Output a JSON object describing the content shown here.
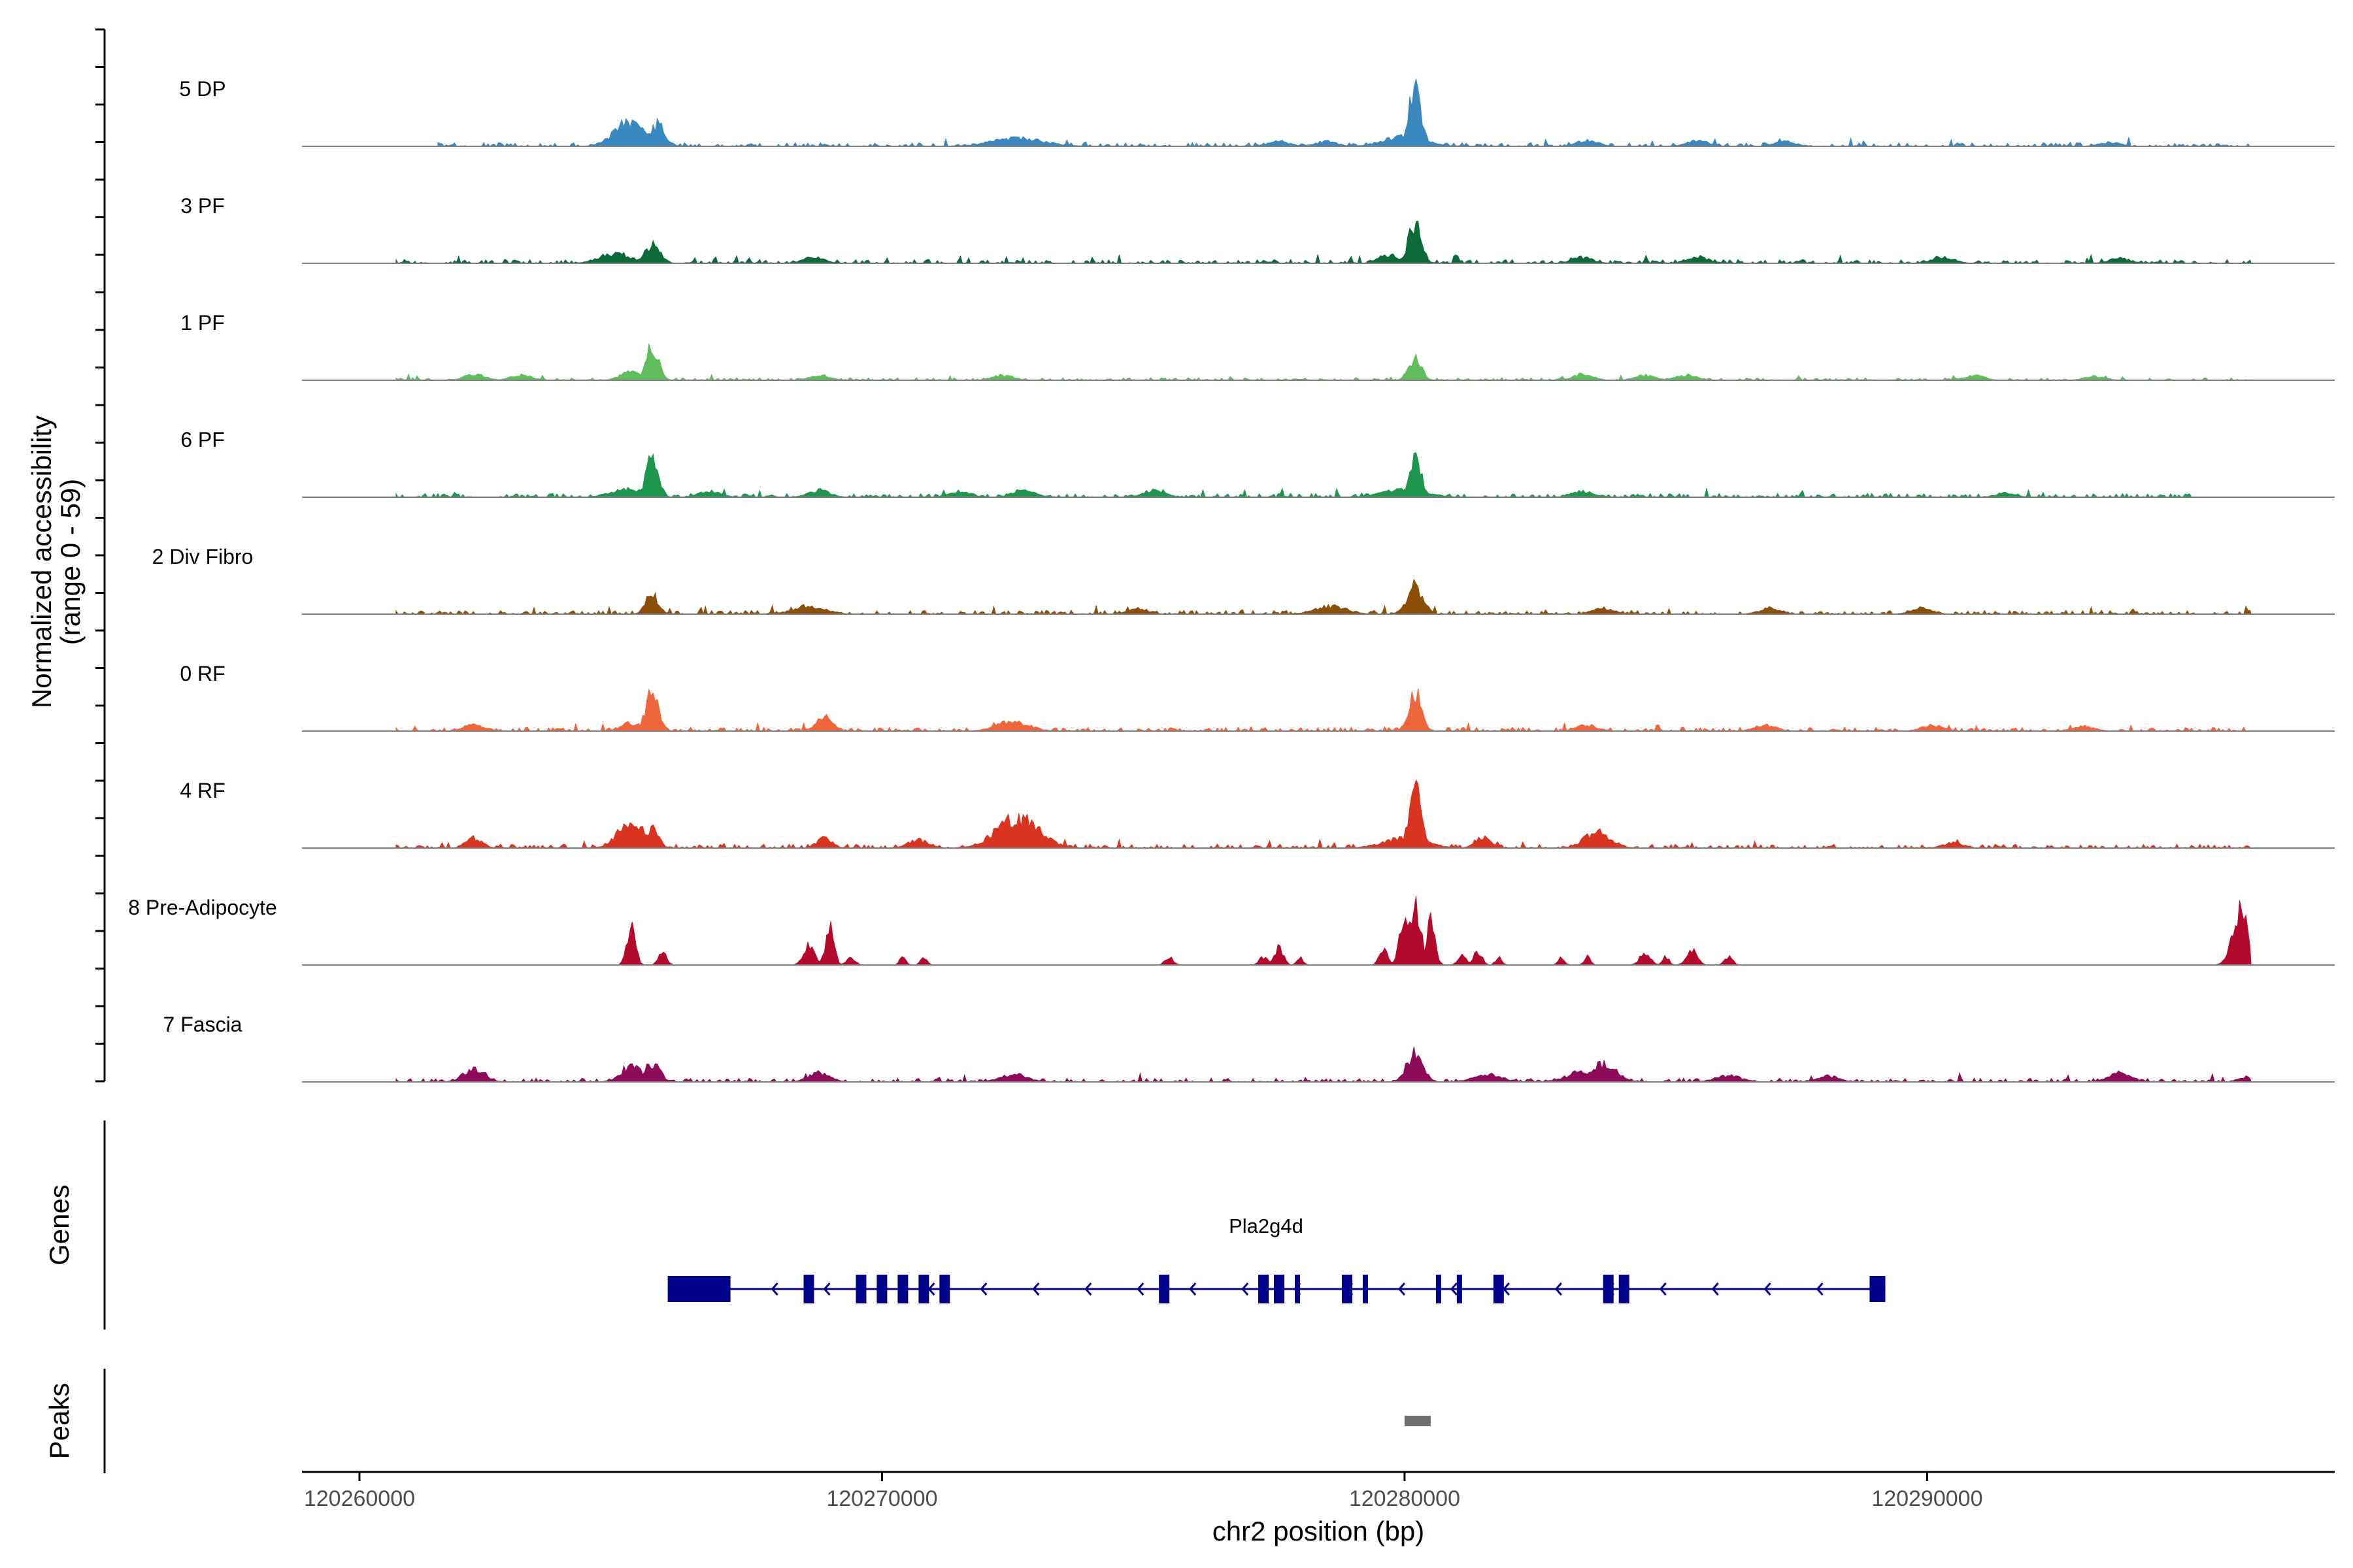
{
  "chart_data": {
    "type": "coverage",
    "y_axis_title_line1": "Normalized accessibility",
    "y_axis_title_line2": "(range 0 - 59)",
    "y_range": [
      0,
      59
    ],
    "x_axis_title": "chr2 position (bp)",
    "x_range": [
      120258900,
      120297800
    ],
    "x_ticks": [
      {
        "value": 120260000,
        "label": "120260000"
      },
      {
        "value": 120270000,
        "label": "120270000"
      },
      {
        "value": 120280000,
        "label": "120280000"
      },
      {
        "value": 120290000,
        "label": "120290000"
      }
    ],
    "tracks": [
      {
        "name": "5 DP",
        "color": "#3a88c0",
        "baseline": 3,
        "noise_start": 120261500,
        "noise_end": 120296200,
        "peaks": [
          [
            120265200,
            26,
            300
          ],
          [
            120265700,
            22,
            150
          ],
          [
            120272600,
            8,
            500
          ],
          [
            120277600,
            5,
            200
          ],
          [
            120278500,
            5,
            200
          ],
          [
            120280200,
            59,
            120
          ],
          [
            120280000,
            10,
            400
          ],
          [
            120283500,
            6,
            200
          ],
          [
            120285600,
            6,
            200
          ],
          [
            120287300,
            5,
            200
          ],
          [
            120293500,
            4,
            200
          ]
        ]
      },
      {
        "name": "3 PF",
        "color": "#0b6a38",
        "baseline": 3,
        "noise_start": 120260700,
        "noise_end": 120296200,
        "peaks": [
          [
            120264900,
            10,
            300
          ],
          [
            120265600,
            18,
            150
          ],
          [
            120268700,
            6,
            200
          ],
          [
            120279700,
            8,
            200
          ],
          [
            120280200,
            42,
            120
          ],
          [
            120283400,
            6,
            200
          ],
          [
            120285600,
            7,
            200
          ],
          [
            120290300,
            7,
            200
          ],
          [
            120293700,
            5,
            200
          ]
        ]
      },
      {
        "name": "1 PF",
        "color": "#62bd5e",
        "baseline": 2,
        "noise_start": 120260700,
        "noise_end": 120296200,
        "peaks": [
          [
            120262200,
            6,
            200
          ],
          [
            120263100,
            5,
            200
          ],
          [
            120265200,
            9,
            200
          ],
          [
            120265600,
            34,
            120
          ],
          [
            120268800,
            5,
            200
          ],
          [
            120272300,
            5,
            200
          ],
          [
            120280200,
            22,
            120
          ],
          [
            120283400,
            6,
            200
          ],
          [
            120284600,
            5,
            200
          ],
          [
            120285400,
            5,
            200
          ],
          [
            120290900,
            5,
            200
          ],
          [
            120293200,
            4,
            200
          ]
        ]
      },
      {
        "name": "6 PF",
        "color": "#1f9650",
        "baseline": 3,
        "noise_start": 120260700,
        "noise_end": 120295300,
        "peaks": [
          [
            120265100,
            8,
            300
          ],
          [
            120265600,
            38,
            120
          ],
          [
            120266700,
            6,
            200
          ],
          [
            120268800,
            7,
            200
          ],
          [
            120271500,
            6,
            200
          ],
          [
            120272700,
            8,
            200
          ],
          [
            120275200,
            7,
            200
          ],
          [
            120280200,
            38,
            120
          ],
          [
            120280000,
            8,
            400
          ],
          [
            120283400,
            6,
            200
          ],
          [
            120291500,
            4,
            200
          ]
        ]
      },
      {
        "name": "2 Div Fibro",
        "color": "#8c4f0a",
        "baseline": 3,
        "noise_start": 120260700,
        "noise_end": 120296200,
        "peaks": [
          [
            120265600,
            20,
            120
          ],
          [
            120268600,
            8,
            300
          ],
          [
            120274900,
            6,
            200
          ],
          [
            120278600,
            8,
            300
          ],
          [
            120280200,
            28,
            150
          ],
          [
            120283800,
            6,
            200
          ],
          [
            120287000,
            6,
            200
          ],
          [
            120289900,
            6,
            200
          ]
        ]
      },
      {
        "name": "0 RF",
        "color": "#f0663c",
        "baseline": 3,
        "noise_start": 120260700,
        "noise_end": 120296200,
        "peaks": [
          [
            120262200,
            7,
            200
          ],
          [
            120265200,
            8,
            200
          ],
          [
            120265600,
            40,
            120
          ],
          [
            120268900,
            14,
            150
          ],
          [
            120272500,
            10,
            300
          ],
          [
            120280200,
            40,
            120
          ],
          [
            120283500,
            6,
            200
          ],
          [
            120286900,
            6,
            200
          ],
          [
            120290100,
            6,
            200
          ],
          [
            120293000,
            5,
            200
          ]
        ]
      },
      {
        "name": "4 RF",
        "color": "#d9341f",
        "baseline": 3,
        "noise_start": 120260700,
        "noise_end": 120296200,
        "peaks": [
          [
            120262200,
            10,
            150
          ],
          [
            120265200,
            28,
            250
          ],
          [
            120265600,
            20,
            120
          ],
          [
            120268900,
            10,
            150
          ],
          [
            120270700,
            8,
            200
          ],
          [
            120272600,
            30,
            400
          ],
          [
            120280200,
            59,
            120
          ],
          [
            120280000,
            10,
            400
          ],
          [
            120281500,
            12,
            150
          ],
          [
            120283700,
            16,
            250
          ],
          [
            120290500,
            5,
            200
          ]
        ]
      },
      {
        "name": "8 Pre-Adipocyte",
        "color": "#b3092c",
        "baseline": 0,
        "noise_start": 120260700,
        "noise_end": 120296200,
        "peaks": [
          [
            120265200,
            40,
            80
          ],
          [
            120265800,
            12,
            80
          ],
          [
            120268600,
            20,
            100
          ],
          [
            120269000,
            39,
            80
          ],
          [
            120269400,
            8,
            80
          ],
          [
            120270400,
            8,
            60
          ],
          [
            120270800,
            8,
            60
          ],
          [
            120275500,
            8,
            80
          ],
          [
            120277300,
            8,
            80
          ],
          [
            120277600,
            18,
            80
          ],
          [
            120278000,
            8,
            60
          ],
          [
            120279600,
            14,
            80
          ],
          [
            120280000,
            40,
            100
          ],
          [
            120280200,
            58,
            120
          ],
          [
            120280500,
            42,
            80
          ],
          [
            120281100,
            10,
            80
          ],
          [
            120281400,
            14,
            80
          ],
          [
            120281800,
            8,
            60
          ],
          [
            120283000,
            8,
            60
          ],
          [
            120283500,
            8,
            60
          ],
          [
            120284600,
            12,
            100
          ],
          [
            120285000,
            8,
            60
          ],
          [
            120285500,
            14,
            100
          ],
          [
            120286200,
            8,
            80
          ],
          [
            120296000,
            52,
            150
          ]
        ]
      },
      {
        "name": "7 Fascia",
        "color": "#8c0c5a",
        "baseline": 3,
        "noise_start": 120260700,
        "noise_end": 120296200,
        "peaks": [
          [
            120262200,
            14,
            200
          ],
          [
            120265200,
            16,
            200
          ],
          [
            120265600,
            18,
            150
          ],
          [
            120268800,
            10,
            200
          ],
          [
            120272500,
            8,
            250
          ],
          [
            120280200,
            30,
            150
          ],
          [
            120281600,
            8,
            250
          ],
          [
            120283400,
            10,
            300
          ],
          [
            120283800,
            18,
            250
          ],
          [
            120286200,
            6,
            250
          ],
          [
            120288100,
            6,
            200
          ],
          [
            120293700,
            10,
            200
          ],
          [
            120296100,
            5,
            150
          ]
        ]
      }
    ],
    "genes": [
      {
        "name": "Pla2g4d",
        "strand": "-",
        "start": 120265900,
        "end": 120289200,
        "exons": [
          [
            120265900,
            120267100,
            "utr"
          ],
          [
            120268500,
            120268700
          ],
          [
            120269500,
            120269700
          ],
          [
            120269900,
            120270100
          ],
          [
            120270300,
            120270500
          ],
          [
            120270700,
            120270900
          ],
          [
            120271100,
            120271300
          ],
          [
            120275300,
            120275500
          ],
          [
            120277200,
            120277400
          ],
          [
            120277500,
            120277700
          ],
          [
            120277900,
            120278000
          ],
          [
            120278800,
            120279000
          ],
          [
            120279200,
            120279300
          ],
          [
            120280600,
            120280700
          ],
          [
            120281000,
            120281100
          ],
          [
            120281700,
            120281900
          ],
          [
            120283800,
            120284000
          ],
          [
            120284100,
            120284300
          ],
          [
            120288900,
            120289200,
            "utr"
          ]
        ]
      }
    ],
    "peaks_track": [
      [
        120280000,
        120280500
      ]
    ],
    "panel_labels": {
      "genes": "Genes",
      "peaks": "Peaks"
    }
  }
}
